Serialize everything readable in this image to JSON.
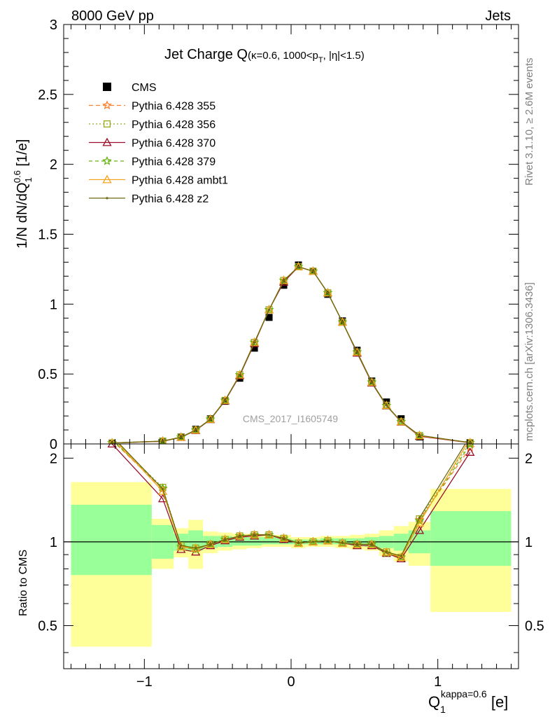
{
  "header": {
    "left": "8000 GeV pp",
    "right": "Jets",
    "rivet": "Rivet 3.1.10, ≥ 2.6M events",
    "mcplots": "mcplots.cern.ch [arXiv:1306.3436]",
    "analysis_id": "CMS_2017_I1605749"
  },
  "chart_data": {
    "type": "line",
    "title": {
      "main": "Jet Charge Q",
      "detail_pre": "(κ=0.6, 1000<p",
      "detail_sub": "T",
      "detail_post": ", |η|<1.5)"
    },
    "ylabel": {
      "pre": "1/N dN/dQ",
      "sub": "1",
      "sup": "0.6",
      "post": " [1/e]"
    },
    "xlabel": {
      "base": "Q",
      "sub": "1",
      "sup": "kappa=0.6",
      "post": " [e]"
    },
    "ratio_ylabel": "Ratio to CMS",
    "xlim": [
      -1.55,
      1.55
    ],
    "ylim": [
      0,
      3
    ],
    "ratio_ylim": [
      0.35,
      2.25
    ],
    "x_ticks": [
      "−1",
      "0",
      "1"
    ],
    "x_tick_values": [
      -1,
      0,
      1
    ],
    "y_ticks": [
      "0",
      "0.5",
      "1",
      "1.5",
      "2",
      "2.5",
      "3"
    ],
    "y_tick_values": [
      0,
      0.5,
      1,
      1.5,
      2,
      2.5,
      3
    ],
    "ratio_ticks": [
      "0.5",
      "1",
      "2"
    ],
    "ratio_tick_values": [
      0.5,
      1,
      2
    ],
    "bins": [
      [
        -1.5,
        -0.95
      ],
      [
        -0.95,
        -0.8
      ],
      [
        -0.8,
        -0.7
      ],
      [
        -0.7,
        -0.6
      ],
      [
        -0.6,
        -0.5
      ],
      [
        -0.5,
        -0.4
      ],
      [
        -0.4,
        -0.3
      ],
      [
        -0.3,
        -0.2
      ],
      [
        -0.2,
        -0.1
      ],
      [
        -0.1,
        0
      ],
      [
        0,
        0.1
      ],
      [
        0.1,
        0.2
      ],
      [
        0.2,
        0.3
      ],
      [
        0.3,
        0.4
      ],
      [
        0.4,
        0.5
      ],
      [
        0.5,
        0.6
      ],
      [
        0.6,
        0.7
      ],
      [
        0.7,
        0.8
      ],
      [
        0.8,
        0.95
      ],
      [
        0.95,
        1.5
      ]
    ],
    "x": [
      -1.22,
      -0.875,
      -0.75,
      -0.65,
      -0.55,
      -0.45,
      -0.35,
      -0.25,
      -0.15,
      -0.05,
      0.05,
      0.15,
      0.25,
      0.35,
      0.45,
      0.55,
      0.65,
      0.75,
      0.875,
      1.22
    ],
    "data": {
      "name": "CMS",
      "values": [
        0.003,
        0.013,
        0.05,
        0.105,
        0.18,
        0.305,
        0.47,
        0.685,
        0.905,
        1.135,
        1.28,
        1.235,
        1.07,
        0.88,
        0.67,
        0.45,
        0.3,
        0.18,
        0.05,
        0.004
      ],
      "stat_band": [
        [
          0.76,
          1.36
        ],
        [
          0.87,
          1.15
        ],
        [
          0.93,
          1.07
        ],
        [
          0.93,
          1.1
        ],
        [
          0.95,
          1.05
        ],
        [
          0.96,
          1.05
        ],
        [
          0.97,
          1.04
        ],
        [
          0.97,
          1.04
        ],
        [
          0.98,
          1.04
        ],
        [
          0.98,
          1.03
        ],
        [
          0.98,
          1.02
        ],
        [
          0.98,
          1.02
        ],
        [
          0.98,
          1.03
        ],
        [
          0.98,
          1.03
        ],
        [
          0.97,
          1.03
        ],
        [
          0.96,
          1.04
        ],
        [
          0.95,
          1.05
        ],
        [
          0.93,
          1.07
        ],
        [
          0.91,
          1.1
        ],
        [
          0.82,
          1.29
        ]
      ],
      "total_band": [
        [
          0.42,
          1.64
        ],
        [
          0.8,
          1.21
        ],
        [
          0.88,
          1.12
        ],
        [
          0.8,
          1.2
        ],
        [
          0.91,
          1.09
        ],
        [
          0.93,
          1.08
        ],
        [
          0.94,
          1.07
        ],
        [
          0.95,
          1.07
        ],
        [
          0.96,
          1.06
        ],
        [
          0.96,
          1.06
        ],
        [
          0.95,
          1.04
        ],
        [
          0.96,
          1.04
        ],
        [
          0.96,
          1.05
        ],
        [
          0.95,
          1.05
        ],
        [
          0.94,
          1.06
        ],
        [
          0.93,
          1.07
        ],
        [
          0.89,
          1.1
        ],
        [
          0.85,
          1.14
        ],
        [
          0.82,
          1.18
        ],
        [
          0.56,
          1.55
        ]
      ]
    },
    "ratio_band_colors": {
      "total": "#ffff99",
      "stat": "#99ff99"
    },
    "series": [
      {
        "name": "Pythia 6.428 355",
        "color": "#ff7f2a",
        "dash": "6,4",
        "marker": "star",
        "ratio": [
          2.32,
          1.55,
          0.96,
          0.94,
          0.98,
          1.02,
          1.05,
          1.06,
          1.06,
          1.03,
          0.99,
          1.0,
          1.01,
          0.99,
          0.98,
          0.98,
          0.91,
          0.88,
          1.2,
          2.18
        ]
      },
      {
        "name": "Pythia 6.428 356",
        "color": "#99a81e",
        "dash": "2,3",
        "marker": "square-open",
        "ratio": [
          2.35,
          1.57,
          0.97,
          0.95,
          0.98,
          1.02,
          1.05,
          1.06,
          1.06,
          1.03,
          0.99,
          1.0,
          1.01,
          0.99,
          0.98,
          0.98,
          0.92,
          0.88,
          1.21,
          2.28
        ]
      },
      {
        "name": "Pythia 6.428 370",
        "color": "#990f2a",
        "dash": "",
        "marker": "triangle-open",
        "ratio": [
          2.25,
          1.43,
          0.94,
          0.92,
          0.97,
          1.01,
          1.04,
          1.05,
          1.06,
          1.02,
          0.99,
          1.0,
          1.01,
          0.99,
          0.97,
          0.97,
          0.91,
          0.87,
          1.1,
          2.1
        ]
      },
      {
        "name": "Pythia 6.428 379",
        "color": "#66b30f",
        "dash": "5,4",
        "marker": "star",
        "ratio": [
          2.33,
          1.56,
          0.96,
          0.94,
          0.98,
          1.02,
          1.05,
          1.06,
          1.06,
          1.03,
          0.99,
          1.0,
          1.01,
          0.99,
          0.98,
          0.98,
          0.91,
          0.88,
          1.19,
          2.24
        ]
      },
      {
        "name": "Pythia 6.428 ambt1",
        "color": "#f5a31e",
        "dash": "",
        "marker": "triangle-open",
        "ratio": [
          2.38,
          1.52,
          0.96,
          0.95,
          0.98,
          1.02,
          1.05,
          1.06,
          1.06,
          1.03,
          0.99,
          1.0,
          1.01,
          0.99,
          0.98,
          0.98,
          0.92,
          0.88,
          1.17,
          2.35
        ]
      },
      {
        "name": "Pythia 6.428 z2",
        "color": "#6b6b0f",
        "dash": "",
        "marker": "dot",
        "ratio": [
          2.4,
          1.55,
          0.97,
          0.95,
          0.98,
          1.02,
          1.05,
          1.06,
          1.06,
          1.03,
          0.99,
          1.0,
          1.01,
          0.99,
          0.98,
          0.98,
          0.92,
          0.89,
          1.22,
          2.4
        ]
      }
    ]
  }
}
